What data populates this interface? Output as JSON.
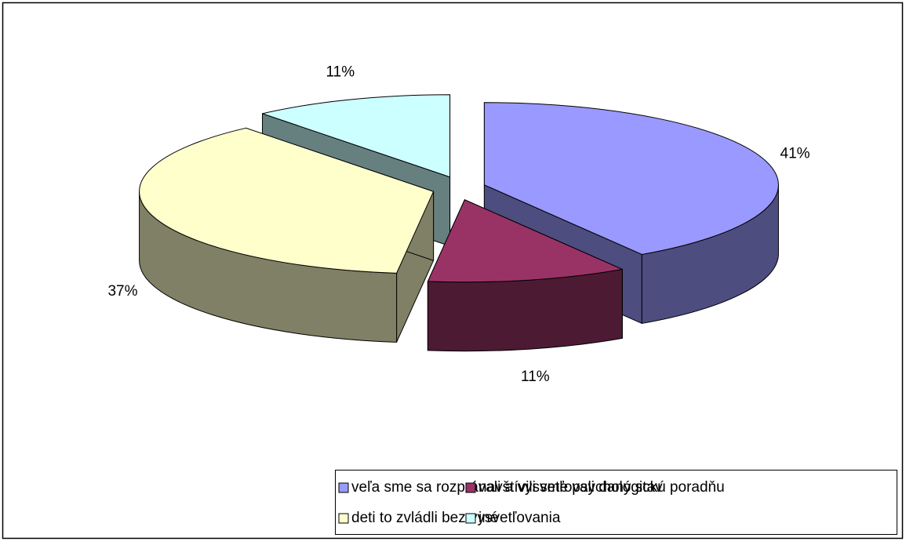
{
  "chart_data": {
    "type": "pie",
    "categories": [
      "veľa sme sa rozprávali a vysvetľovali daný stav",
      "navštívili sme psychologickú poradňu",
      "deti to zvládli bez vysvetľovania",
      "iné"
    ],
    "values": [
      41,
      11,
      37,
      11
    ],
    "value_labels": [
      "41%",
      "11%",
      "37%",
      "11%"
    ],
    "colors": [
      "#9999ff",
      "#993366",
      "#ffffcc",
      "#ccffff"
    ],
    "legend": "bottom"
  }
}
